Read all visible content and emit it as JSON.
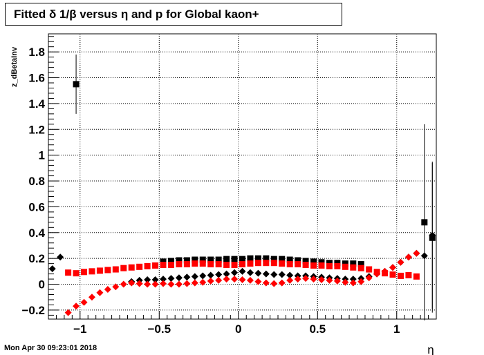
{
  "title": "Fitted δ 1/β versus η and p for Global kaon+",
  "footer": "Mon Apr 30 09:23:01 2018",
  "chart_data": {
    "type": "scatter",
    "title": "Fitted δ 1/β versus η and p for Global kaon+",
    "xlabel": "η",
    "ylabel": "z_dBetaInv",
    "xlim": [
      -1.2,
      1.25
    ],
    "ylim": [
      -0.27,
      1.94
    ],
    "xticks": [
      -1,
      -0.5,
      0,
      0.5,
      1
    ],
    "xtick_labels": [
      "−1",
      "−0.5",
      "0",
      "0.5",
      "1"
    ],
    "yticks": [
      -0.2,
      0,
      0.2,
      0.4,
      0.6,
      0.8,
      1,
      1.2,
      1.4,
      1.6,
      1.8
    ],
    "ytick_labels": [
      "−0.2",
      "0",
      "0.2",
      "0.4",
      "0.6",
      "0.8",
      "1",
      "1.2",
      "1.4",
      "1.6",
      "1.8"
    ],
    "grid": true,
    "series": [
      {
        "marker": "square",
        "color": "#000000",
        "x": [
          -1.025,
          -0.475,
          -0.425,
          -0.375,
          -0.325,
          -0.275,
          -0.225,
          -0.175,
          -0.125,
          -0.075,
          -0.025,
          0.025,
          0.075,
          0.125,
          0.175,
          0.225,
          0.275,
          0.325,
          0.375,
          0.425,
          0.475,
          0.525,
          0.575,
          0.625,
          0.675,
          0.725,
          0.775,
          1.175,
          1.225
        ],
        "y": [
          1.55,
          0.175,
          0.18,
          0.185,
          0.185,
          0.19,
          0.19,
          0.19,
          0.19,
          0.195,
          0.195,
          0.195,
          0.2,
          0.2,
          0.2,
          0.195,
          0.195,
          0.19,
          0.185,
          0.18,
          0.175,
          0.17,
          0.165,
          0.165,
          0.16,
          0.16,
          0.155,
          0.48,
          0.36
        ],
        "yerr": [
          0.23,
          0.01,
          0.01,
          0.01,
          0.01,
          0.01,
          0.01,
          0.01,
          0.01,
          0.01,
          0.01,
          0.01,
          0.01,
          0.01,
          0.01,
          0.01,
          0.01,
          0.01,
          0.01,
          0.01,
          0.01,
          0.01,
          0.01,
          0.01,
          0.01,
          0.01,
          0.01,
          0.76,
          0.58
        ]
      },
      {
        "marker": "diamond",
        "color": "#000000",
        "x": [
          -1.175,
          -1.125,
          -0.675,
          -0.625,
          -0.575,
          -0.525,
          -0.475,
          -0.425,
          -0.375,
          -0.325,
          -0.275,
          -0.225,
          -0.175,
          -0.125,
          -0.075,
          -0.025,
          0.025,
          0.075,
          0.125,
          0.175,
          0.225,
          0.275,
          0.325,
          0.375,
          0.425,
          0.475,
          0.525,
          0.575,
          0.625,
          0.675,
          0.725,
          0.775,
          0.825,
          0.875,
          0.925,
          0.975,
          1.025,
          1.075,
          1.125,
          1.175,
          1.225
        ],
        "y": [
          0.12,
          0.21,
          0.02,
          0.03,
          0.035,
          0.035,
          0.04,
          0.045,
          0.05,
          0.055,
          0.06,
          0.065,
          0.07,
          0.075,
          0.08,
          0.09,
          0.1,
          0.09,
          0.085,
          0.08,
          0.075,
          0.075,
          0.07,
          0.065,
          0.065,
          0.06,
          0.055,
          0.05,
          0.045,
          0.04,
          0.04,
          0.045,
          0.06,
          0.08,
          0.1,
          0.13,
          0.17,
          0.21,
          0.24,
          0.22,
          0.38
        ],
        "yerr": [
          0,
          0,
          0,
          0,
          0,
          0,
          0,
          0,
          0,
          0,
          0,
          0,
          0,
          0,
          0,
          0,
          0,
          0,
          0,
          0,
          0,
          0,
          0,
          0,
          0,
          0,
          0,
          0,
          0,
          0,
          0,
          0,
          0,
          0,
          0,
          0,
          0,
          0,
          0,
          0,
          0.57
        ]
      },
      {
        "marker": "square",
        "color": "#ff0000",
        "x": [
          -1.075,
          -1.025,
          -0.975,
          -0.925,
          -0.875,
          -0.825,
          -0.775,
          -0.725,
          -0.675,
          -0.625,
          -0.575,
          -0.525,
          -0.475,
          -0.425,
          -0.375,
          -0.325,
          -0.275,
          -0.225,
          -0.175,
          -0.125,
          -0.075,
          -0.025,
          0.025,
          0.075,
          0.125,
          0.175,
          0.225,
          0.275,
          0.325,
          0.375,
          0.425,
          0.475,
          0.525,
          0.575,
          0.625,
          0.675,
          0.725,
          0.775,
          0.825,
          0.875,
          0.925,
          0.975,
          1.025,
          1.075,
          1.125
        ],
        "y": [
          0.09,
          0.085,
          0.095,
          0.1,
          0.105,
          0.11,
          0.115,
          0.125,
          0.13,
          0.135,
          0.14,
          0.145,
          0.15,
          0.15,
          0.155,
          0.155,
          0.16,
          0.16,
          0.155,
          0.155,
          0.15,
          0.15,
          0.155,
          0.16,
          0.165,
          0.165,
          0.165,
          0.16,
          0.155,
          0.155,
          0.15,
          0.145,
          0.145,
          0.14,
          0.14,
          0.135,
          0.13,
          0.125,
          0.115,
          0.095,
          0.085,
          0.075,
          0.065,
          0.07,
          0.06
        ]
      },
      {
        "marker": "diamond",
        "color": "#ff0000",
        "x": [
          -1.075,
          -1.025,
          -0.975,
          -0.925,
          -0.875,
          -0.825,
          -0.775,
          -0.725,
          -0.675,
          -0.625,
          -0.575,
          -0.525,
          -0.475,
          -0.425,
          -0.375,
          -0.325,
          -0.275,
          -0.225,
          -0.175,
          -0.125,
          -0.075,
          -0.025,
          0.025,
          0.075,
          0.125,
          0.175,
          0.225,
          0.275,
          0.325,
          0.375,
          0.425,
          0.475,
          0.525,
          0.575,
          0.625,
          0.675,
          0.725,
          0.775,
          0.825,
          0.875,
          0.925,
          0.975,
          1.025,
          1.075,
          1.125
        ],
        "y": [
          -0.22,
          -0.17,
          -0.14,
          -0.1,
          -0.065,
          -0.04,
          -0.02,
          0.0,
          0.01,
          0.005,
          0.0,
          0.0,
          0.005,
          0.0,
          0.0,
          0.005,
          0.01,
          0.015,
          0.025,
          0.03,
          0.04,
          0.04,
          0.035,
          0.03,
          0.02,
          0.01,
          0.005,
          0.01,
          0.03,
          0.04,
          0.045,
          0.04,
          0.035,
          0.03,
          0.025,
          0.015,
          0.01,
          0.02,
          0.05,
          0.08,
          0.1,
          0.13,
          0.17,
          0.21,
          0.24
        ]
      }
    ]
  }
}
